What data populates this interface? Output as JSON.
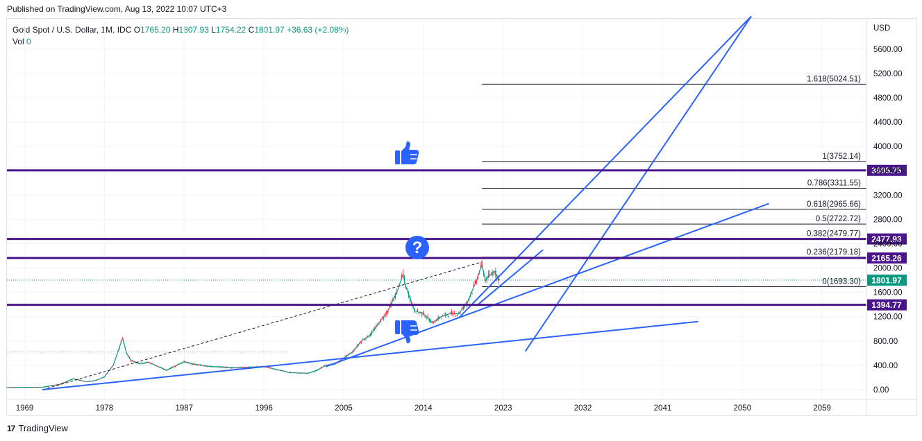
{
  "header": {
    "published": "Published on TradingView.com, Aug 13, 2022 10:07 UTC+3"
  },
  "legend": {
    "symbol": "Gold Spot / U.S. Dollar, 1M, IDC",
    "open_label": "O",
    "open": "1765.20",
    "high_label": "H",
    "high": "1807.93",
    "low_label": "L",
    "low": "1754.22",
    "close_label": "C",
    "close": "1801.97",
    "change": "+36.63 (+2.08%)",
    "vol_label": "Vol",
    "vol": "0"
  },
  "footer": {
    "brand": "TradingView",
    "logo_glyph": "17"
  },
  "colors": {
    "trendline": "#2962ff",
    "level": "#4a148c",
    "up": "#089981",
    "down": "#f23645",
    "price_tag": "#089981",
    "grid": "#f0f3fa"
  },
  "icons": [
    "thumbs-up-icon",
    "question-icon",
    "thumbs-down-icon"
  ],
  "chart_data": {
    "type": "line",
    "title": "Gold Spot / U.S. Dollar, 1M, IDC",
    "y_axis_unit": "USD",
    "y_ticks": [
      0,
      400,
      800,
      1200,
      1600,
      2000,
      2400,
      2800,
      3200,
      3600,
      4000,
      4400,
      4800,
      5200,
      5600
    ],
    "x_ticks": [
      1969,
      1978,
      1987,
      1996,
      2005,
      2014,
      2023,
      2032,
      2041,
      2050,
      2059
    ],
    "xlim": [
      1967,
      2064
    ],
    "ylim": [
      -160,
      6100
    ],
    "grid": true,
    "series": [
      {
        "x": [
          1967,
          1971,
          1973,
          1974.5,
          1976,
          1977,
          1978,
          1979,
          1980.05,
          1980.5,
          1981,
          1982,
          1983,
          1985,
          1987,
          1988,
          1990,
          1993,
          1996,
          1999,
          2001,
          2002,
          2003,
          2004,
          2005,
          2006,
          2007,
          2008,
          2009,
          2010,
          2011,
          2011.7,
          2012,
          2013,
          2014,
          2015,
          2016,
          2017,
          2018,
          2019,
          2020,
          2020.6,
          2021,
          2022,
          2022.6
        ],
        "y": [
          35,
          40,
          90,
          180,
          130,
          150,
          210,
          400,
          850,
          600,
          480,
          430,
          450,
          320,
          460,
          420,
          380,
          360,
          380,
          280,
          270,
          320,
          400,
          420,
          520,
          620,
          800,
          900,
          1100,
          1300,
          1600,
          1900,
          1700,
          1300,
          1250,
          1100,
          1200,
          1250,
          1250,
          1450,
          1800,
          2060,
          1800,
          1950,
          1801.97
        ]
      }
    ],
    "trendlines": [
      {
        "x": [
          1971,
          2045
        ],
        "y": [
          0,
          1120
        ]
      },
      {
        "x": [
          2003,
          2053
        ],
        "y": [
          380,
          3060
        ]
      },
      {
        "x": [
          2018,
          2051
        ],
        "y": [
          1180,
          6140
        ]
      },
      {
        "x": [
          2020,
          2027.5
        ],
        "y": [
          1380,
          2300
        ]
      },
      {
        "x": [
          2025.5,
          2051
        ],
        "y": [
          630,
          6140
        ]
      }
    ],
    "dashed_line": {
      "x": [
        1971,
        2020.6
      ],
      "y": [
        0,
        2100
      ]
    },
    "fibonacci": [
      {
        "label": "1.618(5024.51)",
        "value": 5024.51
      },
      {
        "label": "1(3752.14)",
        "value": 3752.14
      },
      {
        "label": "0.786(3311.55)",
        "value": 3311.55
      },
      {
        "label": "0.618(2965.66)",
        "value": 2965.66
      },
      {
        "label": "0.5(2722.72)",
        "value": 2722.72
      },
      {
        "label": "0.382(2479.77)",
        "value": 2479.77
      },
      {
        "label": "0.236(2179.18)",
        "value": 2179.18
      },
      {
        "label": "0(1693.30)",
        "value": 1693.3
      }
    ],
    "fib_x_start": 2020.6,
    "horizontal_levels": [
      {
        "label": "3605.75",
        "value": 3605.75
      },
      {
        "label": "2477.93",
        "value": 2477.93
      },
      {
        "label": "2165.26",
        "value": 2165.26
      },
      {
        "label": "1394.77",
        "value": 1394.77
      }
    ],
    "last_price": {
      "label": "1801.97",
      "value": 1801.97
    },
    "support_dotted": {
      "value": 620
    }
  }
}
